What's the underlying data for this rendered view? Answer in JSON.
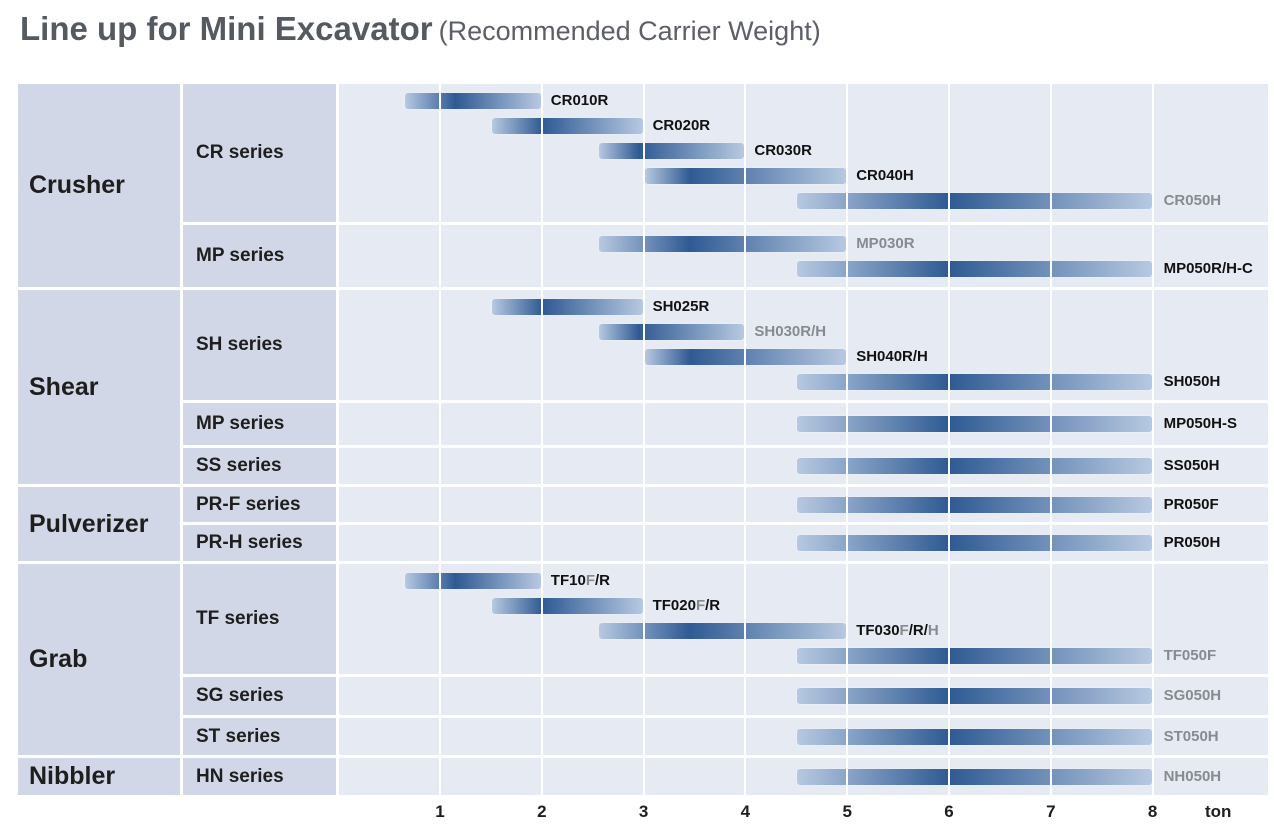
{
  "title": {
    "main": "Line up for Mini Excavator",
    "sub": "(Recommended Carrier Weight)"
  },
  "colors": {
    "bar_dark": "#2f5a93",
    "bar_light": "#b7c9e1",
    "label_dark": "#111111",
    "label_light": "#878a8f",
    "category_bg": "#d1d7e6",
    "plot_bg": "#e6ebf3"
  },
  "chart_data": {
    "type": "bar",
    "orientation": "horizontal-range",
    "x_unit": "ton",
    "x_ticks": [
      "1",
      "2",
      "3",
      "4",
      "5",
      "6",
      "7",
      "8"
    ],
    "grid": true,
    "categories": [
      {
        "name": "Crusher",
        "series": [
          {
            "name": "CR series",
            "models": [
              {
                "label": [
                  {
                    "t": "CR010R",
                    "light": false
                  }
                ],
                "from": 0.65,
                "to": 2.0,
                "peak": 1.15
              },
              {
                "label": [
                  {
                    "t": "CR020R",
                    "light": false
                  }
                ],
                "from": 1.5,
                "to": 3.0,
                "peak": 2.0
              },
              {
                "label": [
                  {
                    "t": "CR030R",
                    "light": false
                  }
                ],
                "from": 2.55,
                "to": 4.0,
                "peak": 2.95
              },
              {
                "label": [
                  {
                    "t": "CR040H",
                    "light": false
                  }
                ],
                "from": 3.0,
                "to": 5.0,
                "peak": 3.45
              },
              {
                "label": [
                  {
                    "t": "CR050H",
                    "light": true
                  }
                ],
                "from": 4.5,
                "to": 8.0,
                "peak": 6.0
              }
            ]
          },
          {
            "name": "MP series",
            "models": [
              {
                "label": [
                  {
                    "t": "MP030R",
                    "light": true
                  }
                ],
                "from": 2.55,
                "to": 5.0,
                "peak": 3.45
              },
              {
                "label": [
                  {
                    "t": "MP050R/H-C",
                    "light": false
                  }
                ],
                "from": 4.5,
                "to": 8.0,
                "peak": 6.0
              }
            ]
          }
        ]
      },
      {
        "name": "Shear",
        "series": [
          {
            "name": "SH series",
            "models": [
              {
                "label": [
                  {
                    "t": "SH025R",
                    "light": false
                  }
                ],
                "from": 1.5,
                "to": 3.0,
                "peak": 2.0
              },
              {
                "label": [
                  {
                    "t": "SH030R/H",
                    "light": true
                  }
                ],
                "from": 2.55,
                "to": 4.0,
                "peak": 2.95
              },
              {
                "label": [
                  {
                    "t": "SH040R/H",
                    "light": false
                  }
                ],
                "from": 3.0,
                "to": 5.0,
                "peak": 3.45
              },
              {
                "label": [
                  {
                    "t": "SH050H",
                    "light": false
                  }
                ],
                "from": 4.5,
                "to": 8.0,
                "peak": 6.0
              }
            ]
          },
          {
            "name": "MP series",
            "models": [
              {
                "label": [
                  {
                    "t": "MP050H-S",
                    "light": false
                  }
                ],
                "from": 4.5,
                "to": 8.0,
                "peak": 6.0
              }
            ]
          },
          {
            "name": "SS series",
            "models": [
              {
                "label": [
                  {
                    "t": "SS050H",
                    "light": false
                  }
                ],
                "from": 4.5,
                "to": 8.0,
                "peak": 6.0
              }
            ]
          }
        ]
      },
      {
        "name": "Pulverizer",
        "series": [
          {
            "name": "PR-F series",
            "models": [
              {
                "label": [
                  {
                    "t": "PR050F",
                    "light": false
                  }
                ],
                "from": 4.5,
                "to": 8.0,
                "peak": 6.0
              }
            ]
          },
          {
            "name": "PR-H series",
            "models": [
              {
                "label": [
                  {
                    "t": "PR050H",
                    "light": false
                  }
                ],
                "from": 4.5,
                "to": 8.0,
                "peak": 6.0
              }
            ]
          }
        ]
      },
      {
        "name": "Grab",
        "series": [
          {
            "name": "TF series",
            "models": [
              {
                "label": [
                  {
                    "t": "TF10",
                    "light": false
                  },
                  {
                    "t": "F",
                    "light": true
                  },
                  {
                    "t": "/R",
                    "light": false
                  }
                ],
                "from": 0.65,
                "to": 2.0,
                "peak": 1.15
              },
              {
                "label": [
                  {
                    "t": "TF020",
                    "light": false
                  },
                  {
                    "t": "F",
                    "light": true
                  },
                  {
                    "t": "/R",
                    "light": false
                  }
                ],
                "from": 1.5,
                "to": 3.0,
                "peak": 2.0
              },
              {
                "label": [
                  {
                    "t": "TF030",
                    "light": false
                  },
                  {
                    "t": "F",
                    "light": true
                  },
                  {
                    "t": "/R/",
                    "light": false
                  },
                  {
                    "t": "H",
                    "light": true
                  }
                ],
                "from": 2.55,
                "to": 5.0,
                "peak": 3.45
              },
              {
                "label": [
                  {
                    "t": "TF050F",
                    "light": true
                  }
                ],
                "from": 4.5,
                "to": 8.0,
                "peak": 6.0
              }
            ]
          },
          {
            "name": "SG series",
            "models": [
              {
                "label": [
                  {
                    "t": "SG050H",
                    "light": true
                  }
                ],
                "from": 4.5,
                "to": 8.0,
                "peak": 6.0
              }
            ]
          },
          {
            "name": "ST series",
            "models": [
              {
                "label": [
                  {
                    "t": "ST050H",
                    "light": true
                  }
                ],
                "from": 4.5,
                "to": 8.0,
                "peak": 6.0
              }
            ]
          }
        ]
      },
      {
        "name": "Nibbler",
        "series": [
          {
            "name": "HN series",
            "models": [
              {
                "label": [
                  {
                    "t": "NH050H",
                    "light": true
                  }
                ],
                "from": 4.5,
                "to": 8.0,
                "peak": 6.0
              }
            ]
          }
        ]
      }
    ]
  }
}
